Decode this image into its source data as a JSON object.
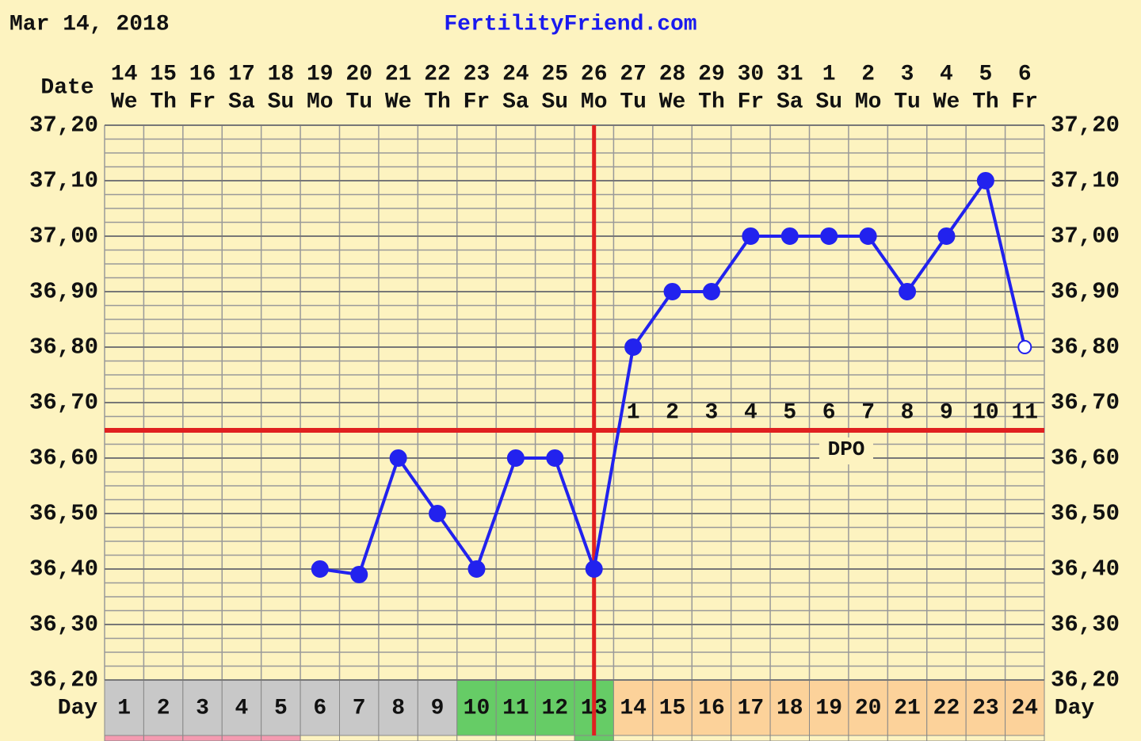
{
  "chart_data": {
    "type": "line",
    "date": "Mar 14, 2018",
    "title": "FertilityFriend.com",
    "x_label": "Date",
    "day_label": "Day",
    "categories": [
      "14",
      "15",
      "16",
      "17",
      "18",
      "19",
      "20",
      "21",
      "22",
      "23",
      "24",
      "25",
      "26",
      "27",
      "28",
      "29",
      "30",
      "31",
      "1",
      "2",
      "3",
      "4",
      "5",
      "6"
    ],
    "weekdays": [
      "We",
      "Th",
      "Fr",
      "Sa",
      "Su",
      "Mo",
      "Tu",
      "We",
      "Th",
      "Fr",
      "Sa",
      "Su",
      "Mo",
      "Tu",
      "We",
      "Th",
      "Fr",
      "Sa",
      "Su",
      "Mo",
      "Tu",
      "We",
      "Th",
      "Fr"
    ],
    "cycle_days": [
      1,
      2,
      3,
      4,
      5,
      6,
      7,
      8,
      9,
      10,
      11,
      12,
      13,
      14,
      15,
      16,
      17,
      18,
      19,
      20,
      21,
      22,
      23,
      24
    ],
    "day_colors": [
      "#c8c8c8",
      "#c8c8c8",
      "#c8c8c8",
      "#c8c8c8",
      "#c8c8c8",
      "#c8c8c8",
      "#c8c8c8",
      "#c8c8c8",
      "#c8c8c8",
      "#66cc66",
      "#66cc66",
      "#66cc66",
      "#66cc66",
      "#fcd29a",
      "#fcd29a",
      "#fcd29a",
      "#fcd29a",
      "#fcd29a",
      "#fcd29a",
      "#fcd29a",
      "#fcd29a",
      "#fcd29a",
      "#fcd29a",
      "#fcd29a"
    ],
    "series": [
      {
        "color": "#2222ee",
        "values": [
          null,
          null,
          null,
          null,
          null,
          36.4,
          36.39,
          36.6,
          36.5,
          36.4,
          36.6,
          36.6,
          36.4,
          36.8,
          36.9,
          36.9,
          37.0,
          37.0,
          37.0,
          37.0,
          36.9,
          37.0,
          37.1,
          36.8
        ]
      }
    ],
    "last_point_hollow": true,
    "ylim": [
      36.2,
      37.2
    ],
    "yticks": [
      {
        "value": 36.2,
        "label": "36,20"
      },
      {
        "value": 36.3,
        "label": "36,30"
      },
      {
        "value": 36.4,
        "label": "36,40"
      },
      {
        "value": 36.5,
        "label": "36,50"
      },
      {
        "value": 36.6,
        "label": "36,60"
      },
      {
        "value": 36.7,
        "label": "36,70"
      },
      {
        "value": 36.8,
        "label": "36,80"
      },
      {
        "value": 36.9,
        "label": "36,90"
      },
      {
        "value": 37.0,
        "label": "37,00"
      },
      {
        "value": 37.1,
        "label": "37,10"
      },
      {
        "value": 37.2,
        "label": "37,20"
      }
    ],
    "coverline": 36.65,
    "ovulation_day": 13,
    "line_color": "#e02020",
    "dpo_labels": [
      1,
      2,
      3,
      4,
      5,
      6,
      7,
      8,
      9,
      10,
      11
    ],
    "dpo_title": "DPO",
    "grid": true
  }
}
